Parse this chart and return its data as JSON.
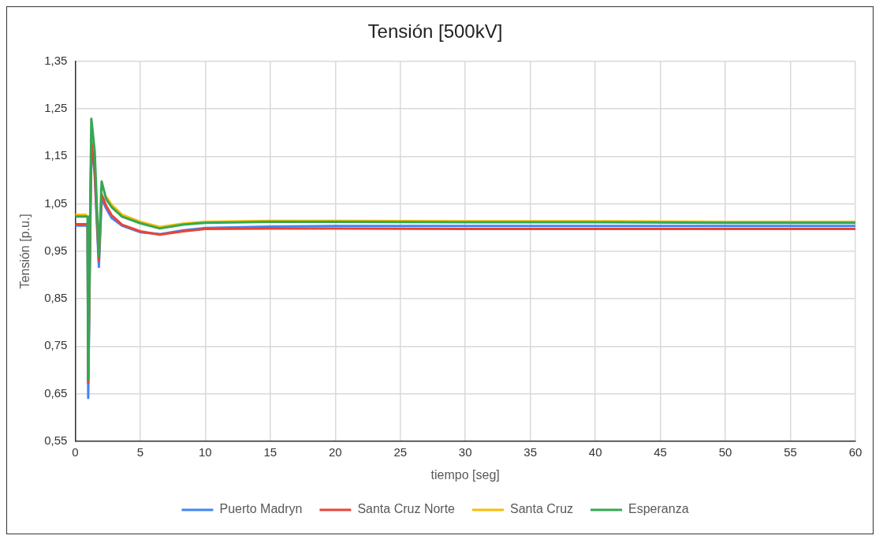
{
  "chart_data": {
    "type": "line",
    "title": "Tensión [500kV]",
    "xlabel": "tiempo [seg]",
    "ylabel": "Tensión [p.u.]",
    "x": [
      0,
      0.9,
      0.95,
      1.0,
      1.24,
      1.5,
      1.82,
      2.03,
      2.38,
      2.8,
      3.6,
      5,
      6.5,
      8.3,
      10,
      15,
      20,
      30,
      40,
      50,
      60
    ],
    "series": [
      {
        "name": "Puerto Madryn",
        "color": "#4285f4",
        "values": [
          1.004,
          1.004,
          1.004,
          0.641,
          1.18,
          1.11,
          0.917,
          1.06,
          1.04,
          1.02,
          1.004,
          0.99,
          0.986,
          0.994,
          0.999,
          1.002,
          1.003,
          1.003,
          1.003,
          1.003,
          1.003
        ]
      },
      {
        "name": "Santa Cruz Norte",
        "color": "#ea4335",
        "values": [
          1.007,
          1.007,
          1.007,
          0.673,
          1.18,
          1.12,
          0.93,
          1.07,
          1.046,
          1.026,
          1.006,
          0.992,
          0.985,
          0.992,
          0.997,
          0.998,
          0.998,
          0.997,
          0.997,
          0.997,
          0.997
        ]
      },
      {
        "name": "Santa Cruz",
        "color": "#fbbc04",
        "values": [
          1.027,
          1.027,
          null,
          null,
          null,
          null,
          null,
          null,
          1.065,
          1.048,
          1.027,
          1.012,
          1.001,
          1.008,
          1.012,
          1.014,
          1.014,
          1.013,
          1.013,
          1.012,
          1.012
        ]
      },
      {
        "name": "Esperanza",
        "color": "#34a853",
        "values": [
          1.023,
          1.023,
          1.023,
          0.68,
          1.229,
          1.16,
          0.94,
          1.097,
          1.06,
          1.043,
          1.023,
          1.009,
          0.998,
          1.006,
          1.01,
          1.012,
          1.012,
          1.011,
          1.011,
          1.01,
          1.01
        ]
      }
    ],
    "xlim": [
      0,
      60
    ],
    "xticks": [
      0,
      5,
      10,
      15,
      20,
      25,
      30,
      35,
      40,
      45,
      50,
      55,
      60
    ],
    "ylim": [
      0.55,
      1.35
    ],
    "yticks": [
      {
        "value": 0.55,
        "label": "0,55"
      },
      {
        "value": 0.65,
        "label": "0,65"
      },
      {
        "value": 0.75,
        "label": "0,75"
      },
      {
        "value": 0.85,
        "label": "0,85"
      },
      {
        "value": 0.95,
        "label": "0,95"
      },
      {
        "value": 1.05,
        "label": "1,05"
      },
      {
        "value": 1.15,
        "label": "1,15"
      },
      {
        "value": 1.25,
        "label": "1,25"
      },
      {
        "value": 1.35,
        "label": "1,35"
      }
    ],
    "grid": true,
    "legend": "bottom",
    "marker": "none",
    "line_style": "solid"
  }
}
